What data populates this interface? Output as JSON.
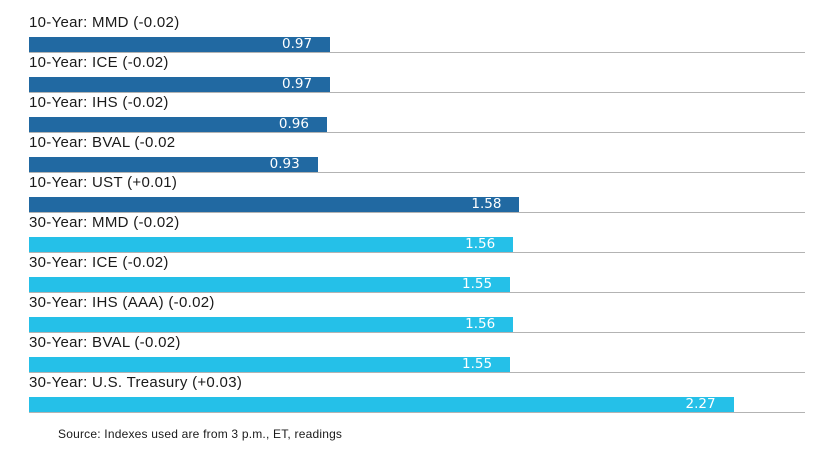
{
  "chart_data": {
    "type": "bar",
    "orientation": "horizontal",
    "title": "",
    "xlabel": "",
    "ylabel": "",
    "xlim": [
      0,
      2.5
    ],
    "grid": "per-row baseline to 2.5",
    "legend": "none",
    "colors": {
      "ten_year": "#2169A2",
      "thirty_year": "#25C0E8",
      "baseline": "#b3b3b3",
      "value_text": "#ffffff",
      "label_text": "#1a1a1a"
    },
    "rows": [
      {
        "label": "10-Year: MMD (-0.02)",
        "value": 0.97,
        "group": "ten_year"
      },
      {
        "label": "10-Year: ICE (-0.02)",
        "value": 0.97,
        "group": "ten_year"
      },
      {
        "label": "10-Year: IHS (-0.02)",
        "value": 0.96,
        "group": "ten_year"
      },
      {
        "label": "10-Year: BVAL (-0.02",
        "value": 0.93,
        "group": "ten_year"
      },
      {
        "label": "10-Year: UST (+0.01)",
        "value": 1.58,
        "group": "ten_year"
      },
      {
        "label": "30-Year: MMD (-0.02)",
        "value": 1.56,
        "group": "thirty_year"
      },
      {
        "label": "30-Year: ICE (-0.02)",
        "value": 1.55,
        "group": "thirty_year"
      },
      {
        "label": "30-Year: IHS (AAA) (-0.02)",
        "value": 1.56,
        "group": "thirty_year"
      },
      {
        "label": "30-Year: BVAL (-0.02)",
        "value": 1.55,
        "group": "thirty_year"
      },
      {
        "label": "30-Year: U.S. Treasury (+0.03)",
        "value": 2.27,
        "group": "thirty_year"
      }
    ],
    "source": "Source: Indexes used are from 3 p.m., ET, readings"
  }
}
